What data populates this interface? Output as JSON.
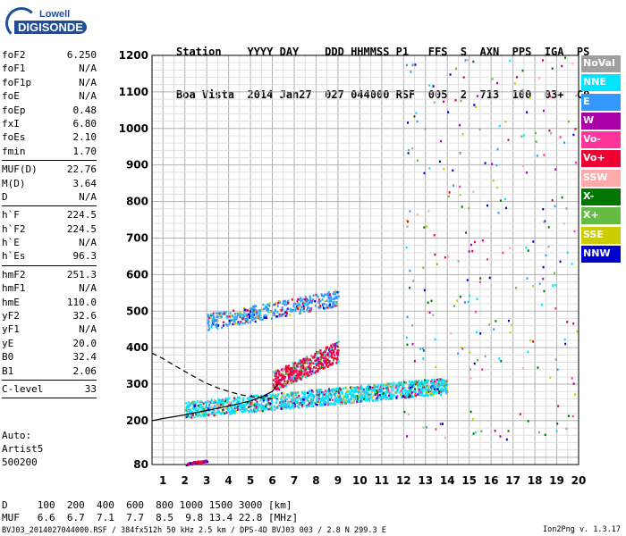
{
  "logo": {
    "line1": "Lowell",
    "line2": "DIGISONDE"
  },
  "station_header": {
    "labels": "Station    YYYY DAY    DDD HHMMSS P1   FFS  S  AXN  PPS  IGA  PS",
    "values": "Boa Vista  2014 Jan27  027 044000 RSF  005  2  713  100  03+  C0"
  },
  "parameters": [
    {
      "group": [
        {
          "name": "foF2",
          "value": "6.250"
        },
        {
          "name": "foF1",
          "value": "N/A"
        },
        {
          "name": "foF1p",
          "value": "N/A"
        },
        {
          "name": "foE",
          "value": "N/A"
        },
        {
          "name": "foEp",
          "value": "0.48"
        },
        {
          "name": "fxI",
          "value": "6.80"
        },
        {
          "name": "foEs",
          "value": "2.10"
        },
        {
          "name": "fmin",
          "value": "1.70"
        }
      ]
    },
    {
      "group": [
        {
          "name": "MUF(D)",
          "value": "22.76"
        },
        {
          "name": "M(D)",
          "value": "3.64"
        },
        {
          "name": "D",
          "value": "N/A"
        }
      ]
    },
    {
      "group": [
        {
          "name": "h`F",
          "value": "224.5"
        },
        {
          "name": "h`F2",
          "value": "224.5"
        },
        {
          "name": "h`E",
          "value": "N/A"
        },
        {
          "name": "h`Es",
          "value": "96.3"
        }
      ]
    },
    {
      "group": [
        {
          "name": "hmF2",
          "value": "251.3"
        },
        {
          "name": "hmF1",
          "value": "N/A"
        },
        {
          "name": "hmE",
          "value": "110.0"
        },
        {
          "name": "yF2",
          "value": "32.6"
        },
        {
          "name": "yF1",
          "value": "N/A"
        },
        {
          "name": "yE",
          "value": "20.0"
        },
        {
          "name": "B0",
          "value": "32.4"
        },
        {
          "name": "B1",
          "value": "2.06"
        }
      ]
    },
    {
      "group": [
        {
          "name": "C-level",
          "value": "33"
        }
      ]
    }
  ],
  "auto": {
    "line1": "Auto:",
    "line2": "Artist5",
    "line3": "500200"
  },
  "legend": [
    {
      "label": "NoVal",
      "color": "#a0a0a0"
    },
    {
      "label": "NNE",
      "color": "#00e5ff"
    },
    {
      "label": "E",
      "color": "#3399ff"
    },
    {
      "label": "W",
      "color": "#aa00aa"
    },
    {
      "label": "Vo-",
      "color": "#ff3399"
    },
    {
      "label": "Vo+",
      "color": "#ee0033"
    },
    {
      "label": "SSW",
      "color": "#ffaaaa"
    },
    {
      "label": "X-",
      "color": "#007700"
    },
    {
      "label": "X+",
      "color": "#66bb44"
    },
    {
      "label": "SSE",
      "color": "#cccc00"
    },
    {
      "label": "NNW",
      "color": "#0000cc"
    }
  ],
  "footer": {
    "d_row": "D     100  200  400  600  800 1000 1500 3000 [km]",
    "muf_row": "MUF   6.6  6.7  7.1  7.7  8.5  9.8 13.4 22.8 [MHz]",
    "file_row": "BVJ03_2014027044000.RSF / 384fx512h 50 kHz 2.5 km / DPS-4D BVJ03 003 / 2.8 N 299.3 E",
    "version": "Ion2Png v. 1.3.17"
  },
  "chart_data": {
    "type": "scatter",
    "title": "",
    "xlabel": "",
    "ylabel": "",
    "xlim": [
      0.5,
      20
    ],
    "ylim": [
      80,
      1200
    ],
    "x_ticks": [
      1,
      2,
      3,
      4,
      5,
      6,
      7,
      8,
      9,
      10,
      11,
      12,
      13,
      14,
      15,
      16,
      17,
      18,
      19,
      20
    ],
    "y_ticks": [
      80,
      200,
      300,
      400,
      500,
      600,
      700,
      800,
      900,
      1000,
      1100,
      1200
    ],
    "grid": true,
    "legend_position": "right",
    "trace_clusters": [
      {
        "name": "F2 trace",
        "freq_range": [
          2.0,
          14.0
        ],
        "height_range": [
          210,
          320
        ],
        "dominant": "NNE"
      },
      {
        "name": "F2 second hop",
        "freq_range": [
          3.0,
          9.0
        ],
        "height_range": [
          450,
          560
        ],
        "dominant": "E"
      },
      {
        "name": "Oblique spread",
        "freq_range": [
          6.0,
          9.0
        ],
        "height_range": [
          280,
          420
        ],
        "dominant": "Vo+"
      },
      {
        "name": "Es trace",
        "freq_range": [
          2.0,
          3.0
        ],
        "height_range": [
          80,
          95
        ],
        "dominant": "Vo+"
      }
    ],
    "series": [
      {
        "name": "profile_dashed",
        "style": "dashed",
        "x": [
          0.5,
          1.0,
          1.5,
          2.0,
          2.5,
          3.0,
          3.5,
          4.0,
          4.5,
          5.0,
          5.5,
          6.0,
          6.25
        ],
        "y": [
          385,
          370,
          352,
          335,
          318,
          302,
          290,
          280,
          272,
          266,
          262,
          260,
          260
        ]
      },
      {
        "name": "profile_solid",
        "style": "solid",
        "x": [
          0.5,
          1.0,
          2.0,
          3.0,
          4.0,
          5.0,
          5.5,
          6.0,
          6.25
        ],
        "y": [
          200,
          206,
          216,
          228,
          240,
          254,
          265,
          280,
          300
        ]
      }
    ]
  }
}
